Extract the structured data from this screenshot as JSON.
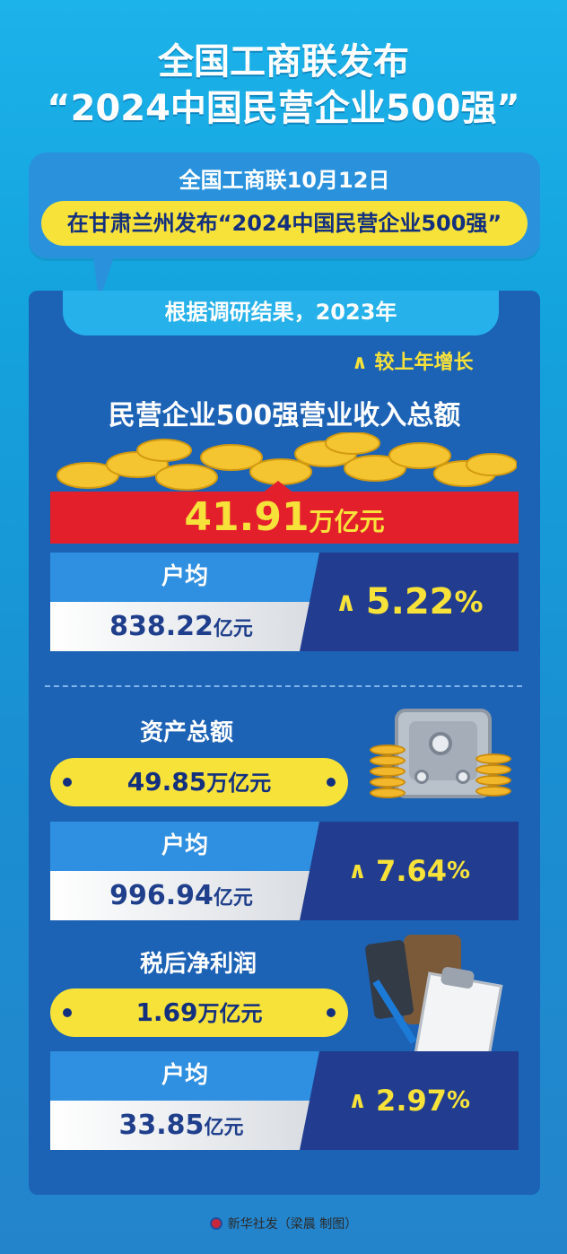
{
  "title": {
    "line1": "全国工商联发布",
    "line2": "“2024中国民营企业500强”"
  },
  "intro": {
    "line1": "全国工商联10月12日",
    "line2": "在甘肃兰州发布“2024中国民营企业500强”"
  },
  "subtitle": "根据调研结果，2023年",
  "legend": {
    "icon": "up-arrow-icon",
    "label": "较上年增长"
  },
  "revenue": {
    "heading": "民营企业500强营业收入总额",
    "total_value": "41.91",
    "total_unit": "万亿元",
    "avg_label": "户均",
    "avg_value": "838.22",
    "avg_unit": "亿元",
    "growth_value": "5.22",
    "growth_unit": "%"
  },
  "assets": {
    "heading": "资产总额",
    "total_value": "49.85",
    "total_unit": "万亿元",
    "avg_label": "户均",
    "avg_value": "996.94",
    "avg_unit": "亿元",
    "growth_value": "7.64",
    "growth_unit": "%"
  },
  "profit": {
    "heading": "税后净利润",
    "total_value": "1.69",
    "total_unit": "万亿元",
    "avg_label": "户均",
    "avg_value": "33.85",
    "avg_unit": "亿元",
    "growth_value": "2.97",
    "growth_unit": "%"
  },
  "footer": {
    "agency": "新华社发",
    "credit": "（梁晨 制图）"
  },
  "colors": {
    "background": "#14a3dd",
    "panel": "#1c62b5",
    "accent_yellow": "#f7e23a",
    "red_bar": "#e41f2c",
    "dark_navy": "#223d8f"
  }
}
